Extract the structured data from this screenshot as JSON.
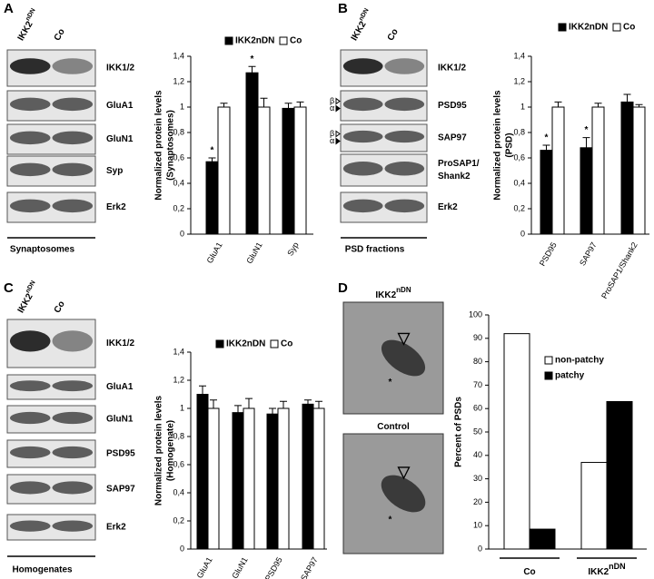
{
  "panel_labels": [
    "A",
    "B",
    "C",
    "D"
  ],
  "blots": [
    {
      "lanes": [
        "IKK2",
        "Co"
      ],
      "lane_superscripts": [
        "nDN",
        null
      ],
      "rows": [
        [
          "IKK1/2"
        ],
        [
          "GluA1"
        ],
        [
          "GluN1"
        ],
        [
          "Syp"
        ],
        [
          "Erk2"
        ]
      ],
      "footer": "Synaptosomes"
    },
    {
      "lanes": [
        "IKK2",
        "Co"
      ],
      "lane_superscripts": [
        "nDN",
        null
      ],
      "rows": [
        [
          "IKK1/2"
        ],
        [
          "PSD95"
        ],
        [
          "SAP97"
        ],
        [
          "ProSAP1/",
          "Shank2"
        ],
        [
          "Erk2"
        ]
      ],
      "footer": "PSD fractions",
      "isoform_markers": [
        "β",
        "α"
      ]
    },
    {
      "lanes": [
        "IKK2",
        "Co"
      ],
      "lane_superscripts": [
        "nDN",
        null
      ],
      "rows": [
        [
          "IKK1/2"
        ],
        [
          "GluA1"
        ],
        [
          "GluN1"
        ],
        [
          "PSD95"
        ],
        [
          "SAP97"
        ],
        [
          "Erk2"
        ]
      ],
      "footer": "Homogenates"
    }
  ],
  "em_images": {
    "titles": [
      "IKK2",
      "Control"
    ],
    "title_superscript": "nDN",
    "marker": "*"
  },
  "chart_data": [
    {
      "type": "bar",
      "ylabel": [
        "Normalized protein levels",
        "(Synaptosomes)"
      ],
      "categories": [
        "GluA1",
        "GluN1",
        "Syp"
      ],
      "series": [
        {
          "name": "IKK2nDN",
          "color": "#000000",
          "values": [
            0.57,
            1.27,
            0.99
          ],
          "errors": [
            0.03,
            0.05,
            0.04
          ],
          "significance": [
            "*",
            "*",
            null
          ]
        },
        {
          "name": "Co",
          "color": "#ffffff",
          "values": [
            1.0,
            1.0,
            1.0
          ],
          "errors": [
            0.03,
            0.07,
            0.04
          ]
        }
      ],
      "ylim": [
        0,
        1.4
      ],
      "yticks": [
        0,
        {
          "value": 0.2,
          "label": "0,2"
        },
        {
          "value": 0.4,
          "label": "0,4"
        },
        {
          "value": 0.6,
          "label": "0,6"
        },
        {
          "value": 0.8,
          "label": "0,8"
        },
        1,
        {
          "value": 1.2,
          "label": "1,2"
        },
        {
          "value": 1.4,
          "label": "1,4"
        }
      ],
      "grid": false,
      "legend": "top"
    },
    {
      "type": "bar",
      "ylabel": [
        "Normalized protein levels",
        "(PSD)"
      ],
      "categories": [
        "PSD95",
        "SAP97",
        "ProSAP1/Shank2"
      ],
      "series": [
        {
          "name": "IKK2nDN",
          "color": "#000000",
          "values": [
            0.66,
            0.68,
            1.04
          ],
          "errors": [
            0.04,
            0.08,
            0.06
          ],
          "significance": [
            "*",
            "*",
            null
          ]
        },
        {
          "name": "Co",
          "color": "#ffffff",
          "values": [
            1.0,
            1.0,
            1.0
          ],
          "errors": [
            0.04,
            0.03,
            0.02
          ]
        }
      ],
      "ylim": [
        0,
        1.4
      ],
      "yticks": [
        0,
        {
          "value": 0.2,
          "label": "0,2"
        },
        {
          "value": 0.4,
          "label": "0,4"
        },
        {
          "value": 0.6,
          "label": "0,6"
        },
        {
          "value": 0.8,
          "label": "0,8"
        },
        1,
        {
          "value": 1.2,
          "label": "1,2"
        },
        {
          "value": 1.4,
          "label": "1,4"
        }
      ],
      "grid": false,
      "legend": "top"
    },
    {
      "type": "bar",
      "ylabel": [
        "Normalized protein levels",
        "(Homogenate)"
      ],
      "categories": [
        "GluA1",
        "GluN1",
        "PSD95",
        "SAP97"
      ],
      "series": [
        {
          "name": "IKK2nDN",
          "color": "#000000",
          "values": [
            1.1,
            0.97,
            0.96,
            1.03
          ],
          "errors": [
            0.06,
            0.05,
            0.04,
            0.03
          ]
        },
        {
          "name": "Co",
          "color": "#ffffff",
          "values": [
            1.0,
            1.0,
            1.0,
            1.0
          ],
          "errors": [
            0.06,
            0.07,
            0.05,
            0.05
          ]
        }
      ],
      "ylim": [
        0,
        1.4
      ],
      "yticks": [
        0,
        {
          "value": 0.2,
          "label": "0,2"
        },
        {
          "value": 0.4,
          "label": "0,4"
        },
        {
          "value": 0.6,
          "label": "0,6"
        },
        {
          "value": 0.8,
          "label": "0,8"
        },
        1,
        {
          "value": 1.2,
          "label": "1,2"
        },
        {
          "value": 1.4,
          "label": "1,4"
        }
      ],
      "grid": false,
      "legend": "top"
    },
    {
      "type": "bar",
      "ylabel": [
        "Percent of PSDs"
      ],
      "categories": [
        "Co",
        "IKK2"
      ],
      "category_superscripts": [
        null,
        "nDN"
      ],
      "series": [
        {
          "name": "non-patchy",
          "color": "#ffffff",
          "values": [
            92,
            37
          ]
        },
        {
          "name": "patchy",
          "color": "#000000",
          "values": [
            8.5,
            63
          ]
        }
      ],
      "ylim": [
        0,
        100
      ],
      "yticks": [
        0,
        10,
        20,
        30,
        40,
        50,
        60,
        70,
        80,
        90,
        100
      ],
      "grid": false,
      "legend": "upper right"
    }
  ]
}
